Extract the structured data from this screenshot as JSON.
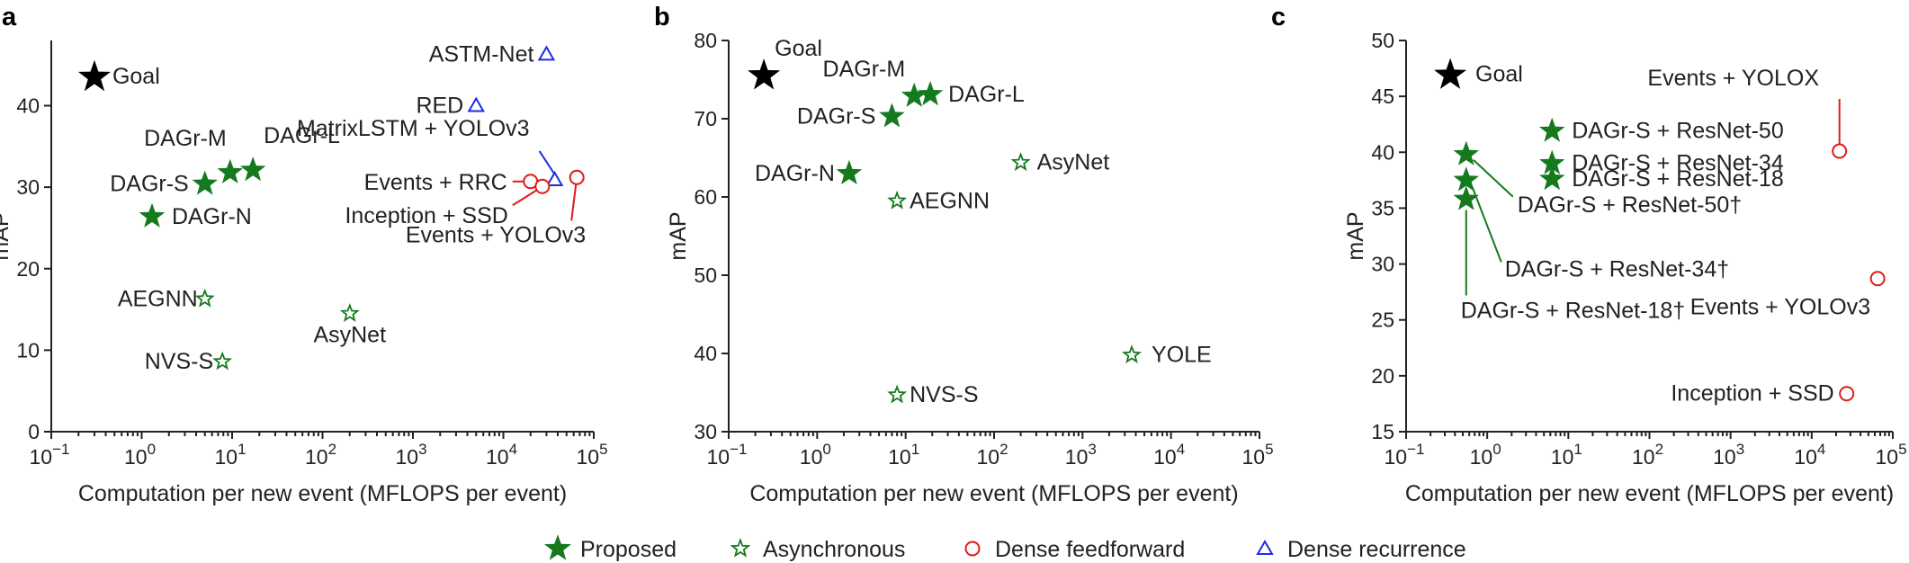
{
  "legend": [
    {
      "label": "Proposed",
      "marker": "star-filled",
      "color": "#157a1e"
    },
    {
      "label": "Asynchronous",
      "marker": "star-open",
      "color": "#157a1e"
    },
    {
      "label": "Dense feedforward",
      "marker": "circle-open",
      "color": "#e01a1a"
    },
    {
      "label": "Dense recurrence",
      "marker": "triangle-open",
      "color": "#1a2ee0"
    }
  ],
  "colors": {
    "proposed": "#157a1e",
    "async": "#157a1e",
    "feedforward": "#e01a1a",
    "recurrence": "#1a2ee0",
    "goal": "#000000"
  },
  "chart_data": [
    {
      "type": "scatter",
      "panel": "a",
      "xlabel": "Computation per new event (MFLOPS per event)",
      "ylabel": "mAP",
      "xscale": "log",
      "xlim": [
        0.1,
        100000
      ],
      "ylim": [
        0,
        48
      ],
      "xticks": [
        0.1,
        1,
        10,
        100,
        1000,
        10000,
        100000
      ],
      "xtick_labels": [
        [
          "10",
          "−1"
        ],
        [
          "10",
          "0"
        ],
        [
          "10",
          "1"
        ],
        [
          "10",
          "2"
        ],
        [
          "10",
          "3"
        ],
        [
          "10",
          "4"
        ],
        [
          "10",
          "5"
        ]
      ],
      "yticks": [
        0,
        10,
        20,
        30,
        40
      ],
      "ytick_labels": [
        "0",
        "10",
        "20",
        "30",
        "40"
      ],
      "points": [
        {
          "label": "Goal",
          "x": 0.3,
          "y": 43.5,
          "marker": "star-goal"
        },
        {
          "label": "DAGr-L",
          "x": 17,
          "y": 32.1,
          "marker": "star-filled"
        },
        {
          "label": "DAGr-M",
          "x": 9.5,
          "y": 31.8,
          "marker": "star-filled"
        },
        {
          "label": "DAGr-S",
          "x": 5,
          "y": 30.4,
          "marker": "star-filled"
        },
        {
          "label": "DAGr-N",
          "x": 1.3,
          "y": 26.4,
          "marker": "star-filled"
        },
        {
          "label": "AEGNN",
          "x": 5,
          "y": 16.3,
          "marker": "star-open"
        },
        {
          "label": "AsyNet",
          "x": 200,
          "y": 14.5,
          "marker": "star-open"
        },
        {
          "label": "NVS-S",
          "x": 7.8,
          "y": 8.6,
          "marker": "star-open"
        },
        {
          "label": "ASTM-Net",
          "x": 30000,
          "y": 46.3,
          "marker": "triangle-open"
        },
        {
          "label": "RED",
          "x": 5000,
          "y": 40.0,
          "marker": "triangle-open"
        },
        {
          "label": "MatrixLSTM + YOLOv3",
          "x": 37000,
          "y": 30.9,
          "marker": "triangle-open"
        },
        {
          "label": "Events + RRC",
          "x": 20000,
          "y": 30.7,
          "marker": "circle-open"
        },
        {
          "label": "Inception + SSD",
          "x": 27000,
          "y": 30.1,
          "marker": "circle-open"
        },
        {
          "label": "Events + YOLOv3",
          "x": 65000,
          "y": 31.2,
          "marker": "circle-open"
        }
      ]
    },
    {
      "type": "scatter",
      "panel": "b",
      "xlabel": "Computation per new event (MFLOPS per event)",
      "ylabel": "mAP",
      "xscale": "log",
      "xlim": [
        0.1,
        100000
      ],
      "ylim": [
        30,
        80
      ],
      "xticks": [
        0.1,
        1,
        10,
        100,
        1000,
        10000,
        100000
      ],
      "xtick_labels": [
        [
          "10",
          "−1"
        ],
        [
          "10",
          "0"
        ],
        [
          "10",
          "1"
        ],
        [
          "10",
          "2"
        ],
        [
          "10",
          "3"
        ],
        [
          "10",
          "4"
        ],
        [
          "10",
          "5"
        ]
      ],
      "yticks": [
        30,
        40,
        50,
        60,
        70,
        80
      ],
      "ytick_labels": [
        "30",
        "40",
        "50",
        "60",
        "70",
        "80"
      ],
      "points": [
        {
          "label": "Goal",
          "x": 0.25,
          "y": 75.5,
          "marker": "star-goal"
        },
        {
          "label": "DAGr-M",
          "x": 12.5,
          "y": 72.9,
          "marker": "star-filled"
        },
        {
          "label": "DAGr-L",
          "x": 19,
          "y": 73.1,
          "marker": "star-filled"
        },
        {
          "label": "DAGr-S",
          "x": 7,
          "y": 70.3,
          "marker": "star-filled"
        },
        {
          "label": "DAGr-N",
          "x": 2.3,
          "y": 63.0,
          "marker": "star-filled"
        },
        {
          "label": "AsyNet",
          "x": 200,
          "y": 64.4,
          "marker": "star-open"
        },
        {
          "label": "AEGNN",
          "x": 8,
          "y": 59.5,
          "marker": "star-open"
        },
        {
          "label": "YOLE",
          "x": 3600,
          "y": 39.8,
          "marker": "star-open"
        },
        {
          "label": "NVS-S",
          "x": 8,
          "y": 34.7,
          "marker": "star-open"
        }
      ]
    },
    {
      "type": "scatter",
      "panel": "c",
      "xlabel": "Computation per new event (MFLOPS per event)",
      "ylabel": "mAP",
      "xscale": "log",
      "xlim": [
        0.1,
        100000
      ],
      "ylim": [
        15,
        50
      ],
      "xticks": [
        0.1,
        1,
        10,
        100,
        1000,
        10000,
        100000
      ],
      "xtick_labels": [
        [
          "10",
          "−1"
        ],
        [
          "10",
          "0"
        ],
        [
          "10",
          "1"
        ],
        [
          "10",
          "2"
        ],
        [
          "10",
          "3"
        ],
        [
          "10",
          "4"
        ],
        [
          "10",
          "5"
        ]
      ],
      "yticks": [
        15,
        20,
        25,
        30,
        35,
        40,
        45,
        50
      ],
      "ytick_labels": [
        "15",
        "20",
        "25",
        "30",
        "35",
        "40",
        "45",
        "50"
      ],
      "points": [
        {
          "label": "Goal",
          "x": 0.35,
          "y": 46.9,
          "marker": "star-goal"
        },
        {
          "label": "DAGr-S + ResNet-50",
          "x": 6.3,
          "y": 41.9,
          "marker": "star-filled"
        },
        {
          "label": "DAGr-S + ResNet-34",
          "x": 6.3,
          "y": 39.0,
          "marker": "star-filled"
        },
        {
          "label": "DAGr-S + ResNet-18",
          "x": 6.3,
          "y": 37.6,
          "marker": "star-filled"
        },
        {
          "label": "DAGr-S + ResNet-50†",
          "x": 0.55,
          "y": 39.8,
          "marker": "star-filled"
        },
        {
          "label": "DAGr-S + ResNet-34†",
          "x": 0.55,
          "y": 37.5,
          "marker": "star-filled"
        },
        {
          "label": "DAGr-S + ResNet-18†",
          "x": 0.55,
          "y": 35.8,
          "marker": "star-filled"
        },
        {
          "label": "Events + YOLOX",
          "x": 22000,
          "y": 40.1,
          "marker": "circle-open"
        },
        {
          "label": "Events + YOLOv3",
          "x": 65000,
          "y": 28.7,
          "marker": "circle-open"
        },
        {
          "label": "Inception + SSD",
          "x": 27000,
          "y": 18.4,
          "marker": "circle-open"
        }
      ]
    }
  ]
}
